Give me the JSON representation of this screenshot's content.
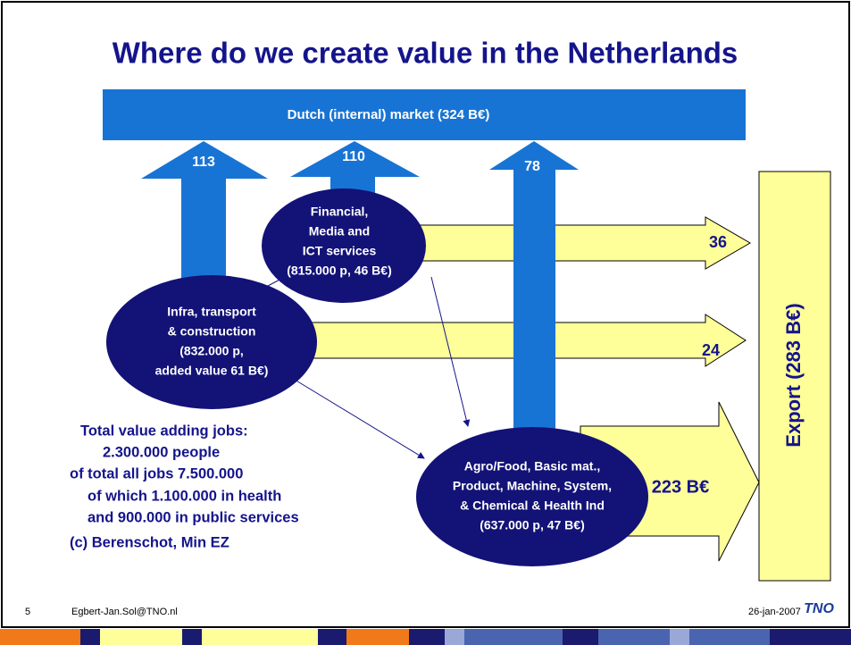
{
  "title": "Where do we create value in the Netherlands",
  "market": "Dutch (internal) market (324 B€)",
  "export": "Export (283 B€)",
  "flows": [
    "113",
    "110",
    "78",
    "36",
    "24",
    "223 B€"
  ],
  "nodes": [
    {
      "lines": [
        "Financial,",
        "Media and",
        "ICT services",
        "(815.000 p, 46 B€)"
      ]
    },
    {
      "lines": [
        "Infra, transport",
        "& construction",
        "(832.000 p,",
        "added value 61 B€)"
      ]
    },
    {
      "lines": [
        "Agro/Food, Basic mat.,",
        "Product, Machine, System,",
        "& Chemical & Health Ind",
        "(637.000 p, 47 B€)"
      ]
    }
  ],
  "notes": [
    "Total value adding jobs:",
    "2.300.000 people",
    "of total all jobs 7.500.000",
    "of which 1.100.000 in health",
    "and 900.000 in public services",
    "(c) Berenschot, Min EZ"
  ],
  "footer": {
    "page": "5",
    "author": "Egbert-Jan.Sol@TNO.nl",
    "date": "26-jan-2007",
    "logo": "TNO"
  }
}
